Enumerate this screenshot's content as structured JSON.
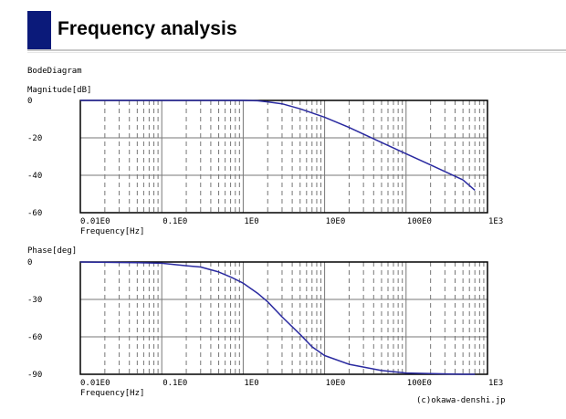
{
  "page": {
    "title": "Frequency analysis"
  },
  "diagram": {
    "title": "BodeDiagram",
    "copyright": "(c)okawa-denshi.jp"
  },
  "chart_data": [
    {
      "type": "line",
      "name": "magnitude",
      "ylabel": "Magnitude[dB]",
      "xlabel": "Frequency[Hz]",
      "xscale": "log",
      "xlim": [
        0.01,
        1000
      ],
      "ylim": [
        -60,
        0
      ],
      "xticks": [
        0.01,
        0.1,
        1,
        10,
        100,
        1000
      ],
      "xtick_labels": [
        "0.01E0",
        "0.1E0",
        "1E0",
        "10E0",
        "100E0",
        "1E3"
      ],
      "yticks": [
        0,
        -20,
        -40,
        -60
      ],
      "ytick_labels": [
        "0",
        "-20",
        "-40",
        "-60"
      ],
      "grid": true,
      "x": [
        0.01,
        0.1,
        0.5,
        1,
        1.5,
        2,
        3,
        5,
        10,
        20,
        50,
        100,
        200,
        500,
        700
      ],
      "y": [
        0,
        0,
        0,
        0,
        -0.2,
        -0.8,
        -1.8,
        -4.5,
        -9,
        -14.5,
        -22.5,
        -28.5,
        -34.5,
        -42.5,
        -48
      ]
    },
    {
      "type": "line",
      "name": "phase",
      "ylabel": "Phase[deg]",
      "xlabel": "Frequency[Hz]",
      "xscale": "log",
      "xlim": [
        0.01,
        1000
      ],
      "ylim": [
        -90,
        0
      ],
      "xticks": [
        0.01,
        0.1,
        1,
        10,
        100,
        1000
      ],
      "xtick_labels": [
        "0.01E0",
        "0.1E0",
        "1E0",
        "10E0",
        "100E0",
        "1E3"
      ],
      "yticks": [
        0,
        -30,
        -60,
        -90
      ],
      "ytick_labels": [
        "0",
        "-30",
        "-60",
        "-90"
      ],
      "grid": true,
      "x": [
        0.01,
        0.05,
        0.1,
        0.2,
        0.3,
        0.5,
        0.7,
        1,
        1.5,
        2,
        3,
        5,
        7,
        10,
        20,
        50,
        100,
        200,
        500,
        700
      ],
      "y": [
        0,
        -0.5,
        -1,
        -3,
        -4,
        -8,
        -12,
        -17,
        -25,
        -32,
        -44,
        -58,
        -68,
        -75,
        -82,
        -87,
        -89,
        -89.5,
        -90,
        -90
      ]
    }
  ],
  "colors": {
    "accent": "#0b1a7a",
    "curve": "#2a2aa0",
    "grid": "#777777",
    "frame": "#000000"
  }
}
